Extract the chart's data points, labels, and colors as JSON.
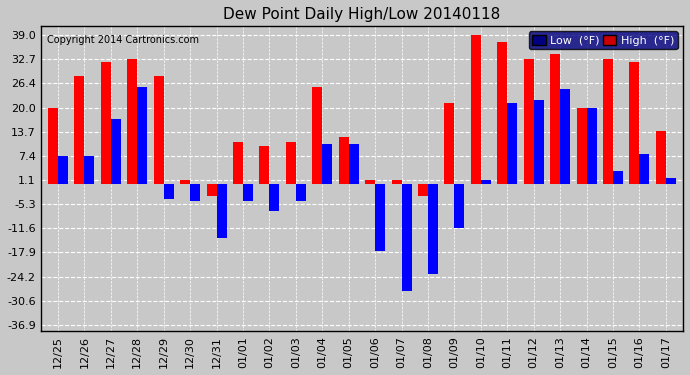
{
  "title": "Dew Point Daily High/Low 20140118",
  "copyright": "Copyright 2014 Cartronics.com",
  "yticks": [
    39.0,
    32.7,
    26.4,
    20.0,
    13.7,
    7.4,
    1.1,
    -5.3,
    -11.6,
    -17.9,
    -24.2,
    -30.6,
    -36.9
  ],
  "ylim": [
    -38.5,
    41.5
  ],
  "dates": [
    "12/25",
    "12/26",
    "12/27",
    "12/28",
    "12/29",
    "12/30",
    "12/31",
    "01/01",
    "01/02",
    "01/03",
    "01/04",
    "01/05",
    "01/06",
    "01/07",
    "01/08",
    "01/09",
    "01/10",
    "01/11",
    "01/12",
    "01/13",
    "01/14",
    "01/15",
    "01/16",
    "01/17"
  ],
  "high": [
    20.0,
    28.4,
    32.0,
    32.7,
    28.4,
    1.1,
    -3.0,
    11.0,
    10.0,
    11.0,
    25.5,
    12.5,
    1.1,
    1.1,
    -3.0,
    21.2,
    39.0,
    37.4,
    32.7,
    34.0,
    20.0,
    32.7,
    32.0,
    14.0
  ],
  "low": [
    7.4,
    7.4,
    17.0,
    25.5,
    -4.0,
    -4.5,
    -14.0,
    -4.5,
    -7.0,
    -4.5,
    10.5,
    10.5,
    -17.5,
    -28.0,
    -23.5,
    -11.5,
    1.1,
    21.2,
    22.0,
    25.0,
    20.0,
    3.5,
    8.0,
    1.5
  ],
  "bar_width": 0.38,
  "high_color": "#FF0000",
  "low_color": "#0000FF",
  "bg_color": "#C8C8C8",
  "plot_bg_color": "#C8C8C8",
  "grid_color": "#FFFFFF",
  "legend_low_bg": "#000080",
  "legend_high_bg": "#CC0000",
  "legend_low_label": "Low  (°F)",
  "legend_high_label": "High  (°F)",
  "figsize": [
    6.9,
    3.75
  ],
  "dpi": 100
}
